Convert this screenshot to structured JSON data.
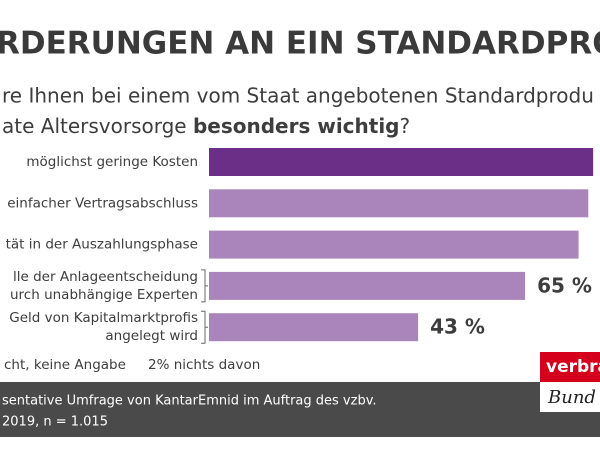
{
  "header": {
    "title": "RDERUNGEN AN EIN STANDARDPRODUK",
    "question_line1": "re Ihnen bei einem vom Staat angebotenen Standardprodu",
    "question_line2": "ate Altersvorsorge ",
    "question_bold": "besonders wichtig",
    "question_end": "?"
  },
  "chart_data": {
    "type": "bar",
    "orientation": "horizontal",
    "categories": [
      [
        "möglichst geringe Kosten"
      ],
      [
        "einfacher Vertragsabschluss"
      ],
      [
        "tät in der Auszahlungsphase"
      ],
      [
        "lle der Anlageentscheidung",
        "urch unabhängige Experten"
      ],
      [
        "Geld von Kapitalmarktprofis",
        "angelegt wird"
      ]
    ],
    "values": [
      79,
      78,
      76,
      65,
      43
    ],
    "value_labels": [
      null,
      null,
      null,
      "65 %",
      "43 %"
    ],
    "colors": [
      "#6b2f87",
      "#a985bc",
      "#a985bc",
      "#a985bc",
      "#a985bc"
    ],
    "xlim": [
      0,
      80
    ]
  },
  "notes": [
    "cht, keine Angabe",
    "2% nichts davon"
  ],
  "footer": {
    "source_line1": "sentative Umfrage von KantarEmnid im Auftrag des vzbv.",
    "source_line2": "2019, n = 1.015"
  },
  "logo": {
    "top": "verbrau",
    "bottom": "Bund"
  }
}
